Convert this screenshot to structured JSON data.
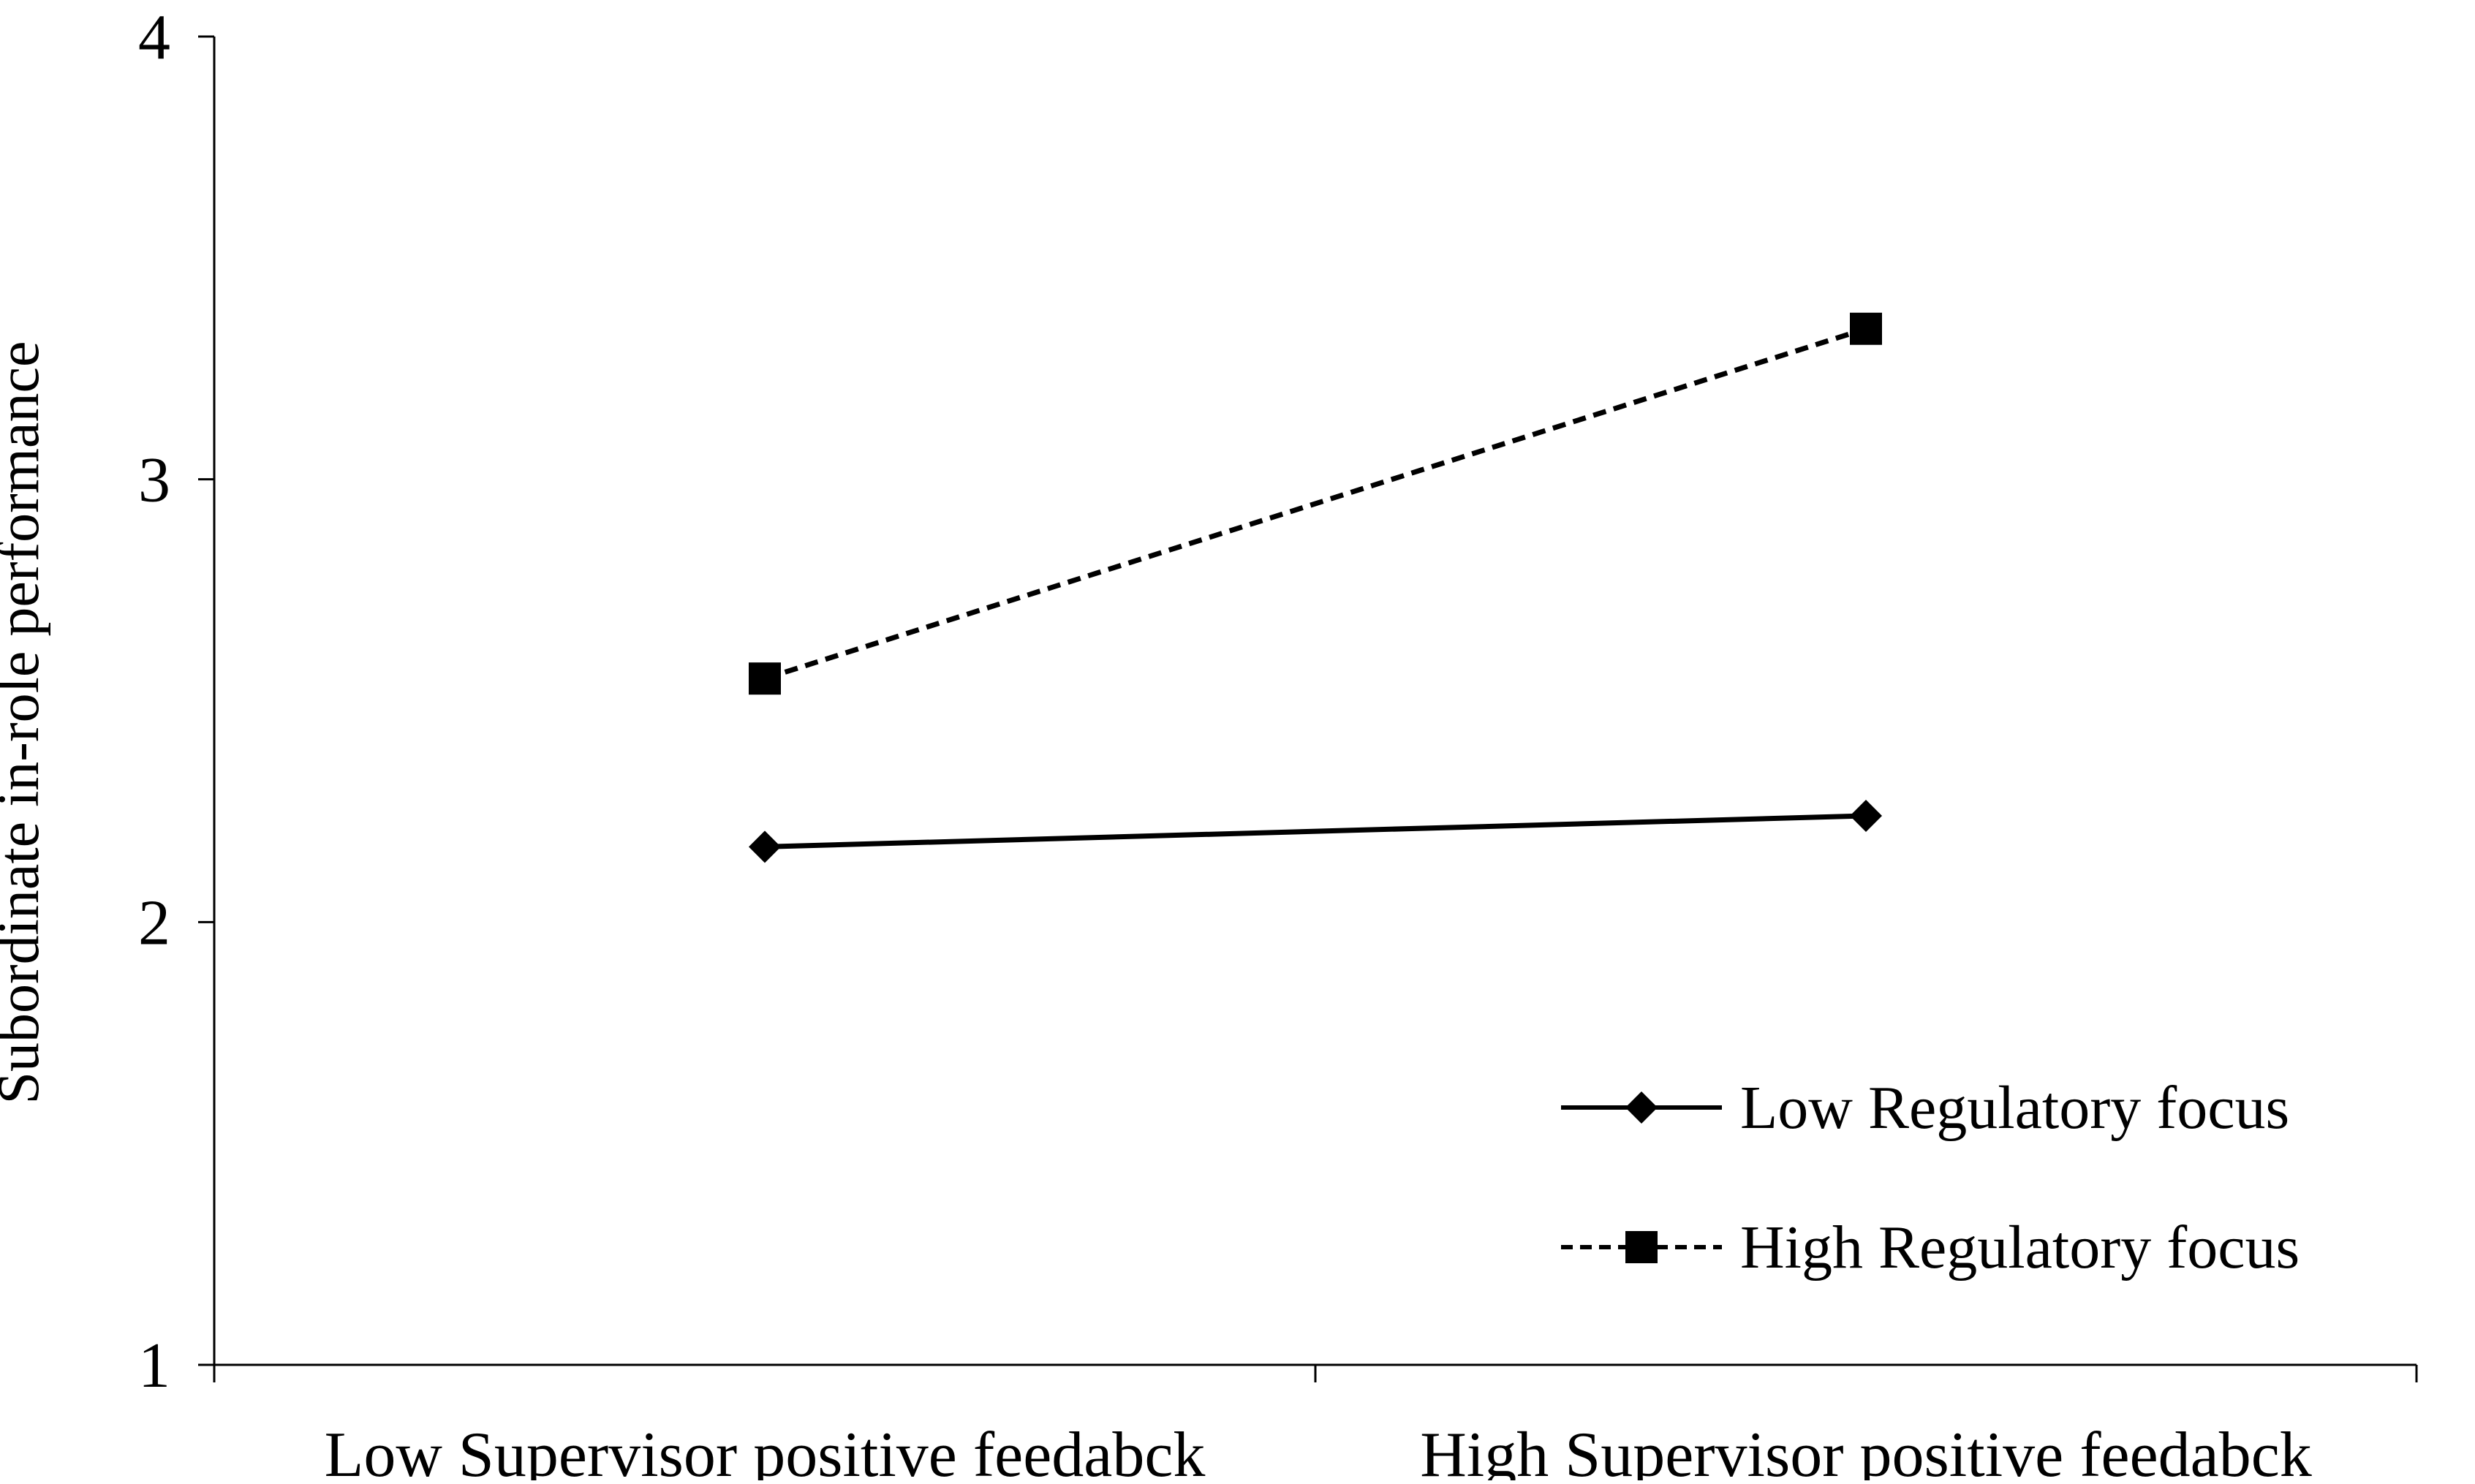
{
  "chart_data": {
    "type": "line",
    "title": "",
    "xlabel": "",
    "ylabel": "Subordinate in-role performance",
    "categories": [
      "Low Supervisor positive feedabck",
      "High Supervisor positive feedabck"
    ],
    "ylim": [
      1,
      4
    ],
    "yticks": [
      1,
      2,
      3,
      4
    ],
    "grid": false,
    "legend_position": "bottom-right",
    "series": [
      {
        "name": "Low Regulatory focus",
        "values": [
          2.17,
          2.24
        ],
        "line_style": "solid",
        "marker": "diamond",
        "color": "#000000"
      },
      {
        "name": "High Regulatory focus",
        "values": [
          2.55,
          3.34
        ],
        "line_style": "dashed",
        "marker": "square",
        "color": "#000000"
      }
    ]
  }
}
